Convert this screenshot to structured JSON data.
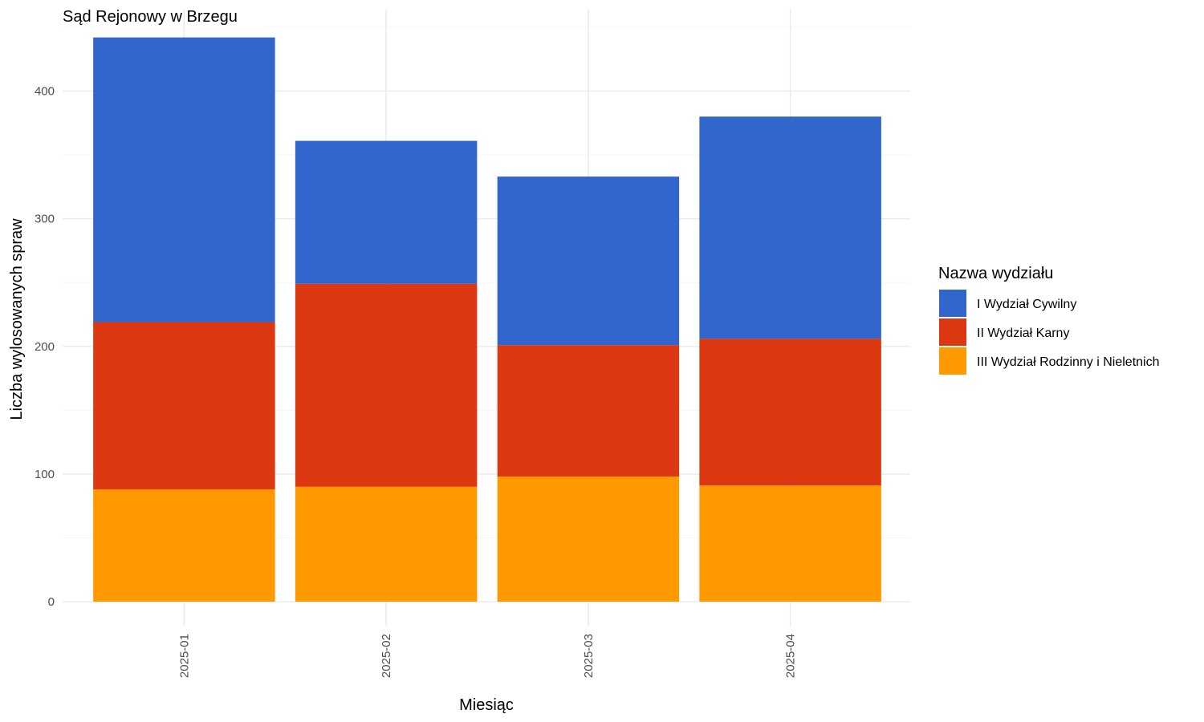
{
  "chart_data": {
    "type": "bar",
    "stacked": true,
    "title": "Sąd Rejonowy w Brzegu",
    "xlabel": "Miesiąc",
    "ylabel": "Liczba wylosowanych spraw",
    "categories": [
      "2025-01",
      "2025-02",
      "2025-03",
      "2025-04"
    ],
    "ylim": [
      0,
      460
    ],
    "yticks": [
      0,
      100,
      200,
      300,
      400
    ],
    "ytick_labels": [
      "0",
      "100",
      "200",
      "300",
      "400"
    ],
    "grid": true,
    "legend_title": "Nazwa wydziału",
    "legend_position": "right",
    "series": [
      {
        "name": "III Wydział Rodzinny i Nieletnich",
        "color": "#ff9900",
        "values": [
          88,
          90,
          98,
          91
        ]
      },
      {
        "name": "II Wydział Karny",
        "color": "#dc3912",
        "values": [
          131,
          159,
          103,
          115
        ]
      },
      {
        "name": "I Wydział Cywilny",
        "color": "#3366cc",
        "values": [
          223,
          112,
          132,
          174
        ]
      }
    ],
    "legend_order": [
      "I Wydział Cywilny",
      "II Wydział Karny",
      "III Wydział Rodzinny i Nieletnich"
    ]
  }
}
